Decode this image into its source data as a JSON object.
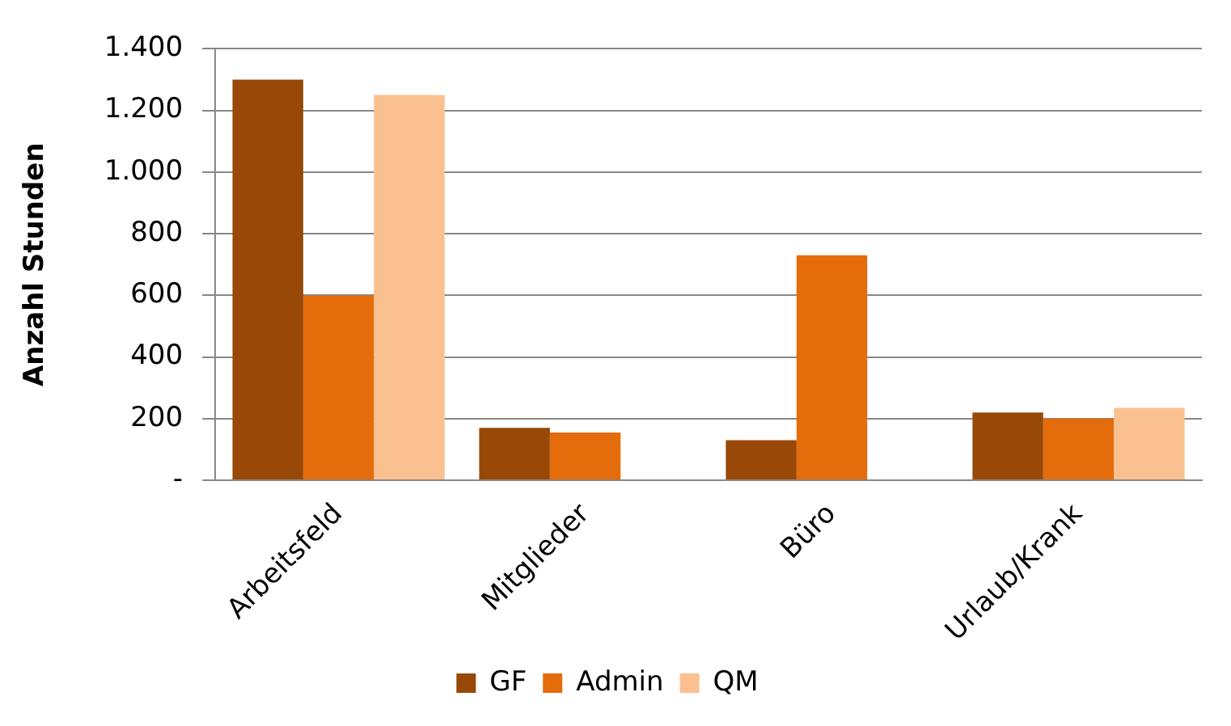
{
  "chart_data": {
    "type": "bar",
    "ylabel": "Anzahl Stunden",
    "categories": [
      "Arbeitsfeld",
      "Mitglieder",
      "Büro",
      "Urlaub/Krank"
    ],
    "series": [
      {
        "name": "GF",
        "color": "#984807",
        "values": [
          1300,
          170,
          130,
          220
        ]
      },
      {
        "name": "Admin",
        "color": "#e46c0a",
        "values": [
          600,
          155,
          730,
          200
        ]
      },
      {
        "name": "QM",
        "color": "#fac090",
        "values": [
          1250,
          null,
          null,
          235
        ]
      }
    ],
    "ylim": [
      0,
      1400
    ],
    "yticks": [
      {
        "value": 0,
        "label": "-"
      },
      {
        "value": 200,
        "label": "200"
      },
      {
        "value": 400,
        "label": "400"
      },
      {
        "value": 600,
        "label": "600"
      },
      {
        "value": 800,
        "label": "800"
      },
      {
        "value": 1000,
        "label": "1.000"
      },
      {
        "value": 1200,
        "label": "1.200"
      },
      {
        "value": 1400,
        "label": "1.400"
      }
    ],
    "grid": "y",
    "legend": "bottom"
  }
}
